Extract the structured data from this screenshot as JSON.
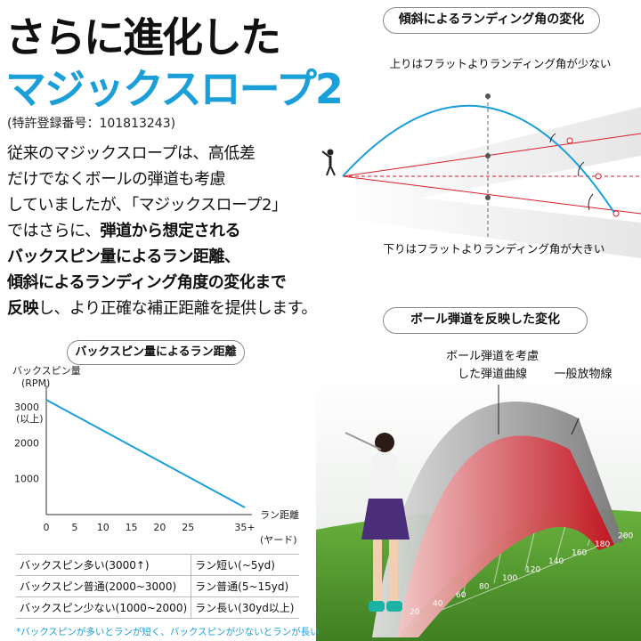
{
  "title": {
    "line1": "さらに進化した",
    "line2": "マジックスロープ2"
  },
  "patent": "(特許登録番号：101813243)",
  "description": [
    [
      {
        "text": "従来のマジックスロープは、高低差",
        "bold": false
      }
    ],
    [
      {
        "text": "だけでなくボールの弾道も考慮",
        "bold": false
      }
    ],
    [
      {
        "text": "していましたが、「マジックスロープ2」",
        "bold": false
      }
    ],
    [
      {
        "text": "ではさらに、",
        "bold": false
      },
      {
        "text": "弾道から想定される",
        "bold": true
      }
    ],
    [
      {
        "text": "バックスピン量によるラン距離、",
        "bold": true
      }
    ],
    [
      {
        "text": "傾斜によるランディング角度の変化まで",
        "bold": true
      }
    ],
    [
      {
        "text": "反映",
        "bold": true
      },
      {
        "text": "し、より正確な補正距離を提供します。",
        "bold": false
      }
    ]
  ],
  "slope_panel": {
    "title": "傾斜によるランディング角の変化",
    "uphill_label": "上りはフラットよりランディング角が少ない",
    "downhill_label": "下りはフラットよりランディング角が大きい",
    "icons": [
      "golfer-icon"
    ]
  },
  "ball_panel": {
    "title": "ボール弾道を反映した変化",
    "curve_label_line1": "ボール弾道を考慮",
    "curve_label_line2": "した弾道曲線",
    "parabola_label": "一般放物線",
    "distance_marks": [
      "20",
      "40",
      "60",
      "80",
      "100",
      "120",
      "140",
      "160",
      "180",
      "200"
    ],
    "colors": {
      "ball_curve": "#d61e2a",
      "parabola": "#333333",
      "grass": "#4e9a2e"
    }
  },
  "spin_chart": {
    "title": "バックスピン量によるラン距離",
    "chart_data": {
      "type": "line",
      "ylabel_line1": "バックスピン量",
      "ylabel_line2": "(RPM)",
      "xlabel_line1": "ラン距離",
      "xlabel_line2": "(ヤード)",
      "x_ticks": [
        "0",
        "5",
        "10",
        "15",
        "20",
        "25",
        "35+"
      ],
      "y_ticks": [
        "1000",
        "2000",
        "3000"
      ],
      "y_top_note": "(以上)",
      "series": [
        {
          "x": [
            0,
            35
          ],
          "y": [
            3200,
            200
          ]
        }
      ],
      "xlim": [
        0,
        35
      ],
      "ylim": [
        0,
        3500
      ],
      "grid": false,
      "color": "#1a9fd9"
    }
  },
  "spin_table": [
    [
      "バックスピン多い(3000↑)",
      "ラン短い(~5yd)"
    ],
    [
      "バックスピン普通(2000~3000)",
      "ラン普通(5~15yd)"
    ],
    [
      "バックスピン少ない(1000~2000)",
      "ラン長い(30yd以上)"
    ]
  ],
  "footnote": "*バックスピンが多いとランが短く、バックスピンが少ないとランが長い"
}
